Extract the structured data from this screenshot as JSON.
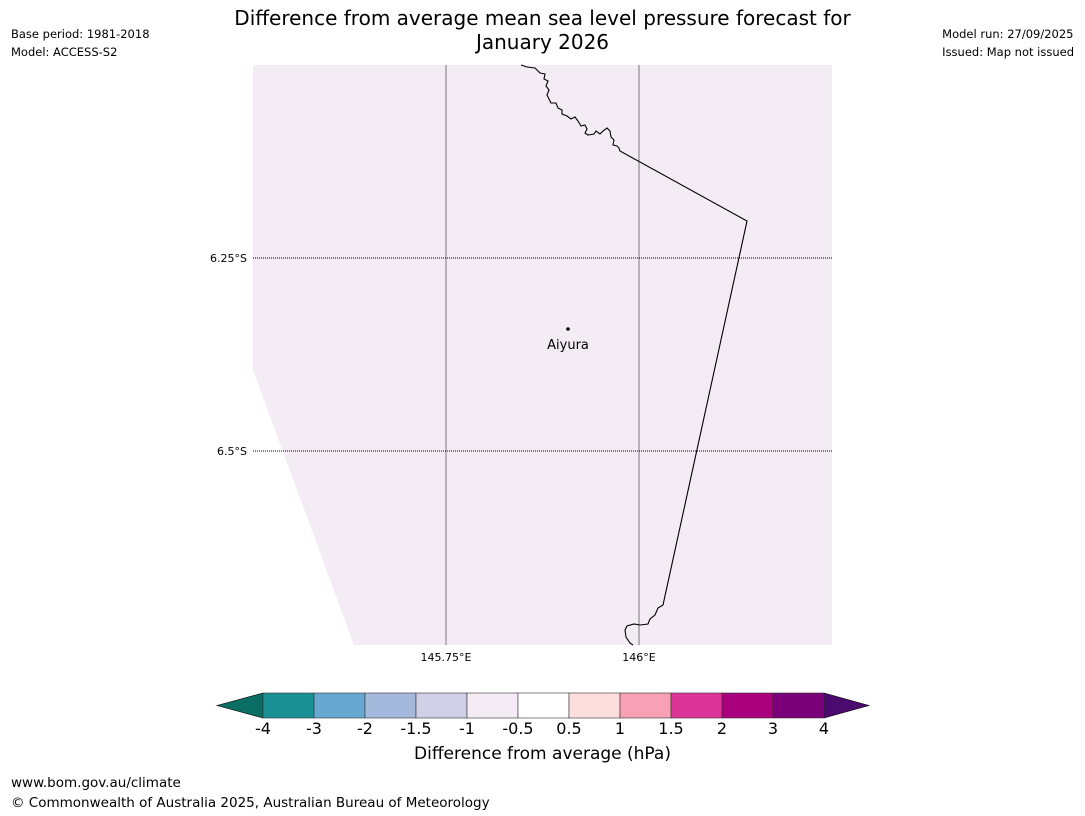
{
  "title_line1": "Difference from average mean sea level pressure forecast for",
  "title_line2": "January 2026",
  "meta_left": {
    "base_period": "Base period: 1981-2018",
    "model": "Model: ACCESS-S2"
  },
  "meta_right": {
    "model_run": "Model run: 27/09/2025",
    "issued": "Issued: Map not issued"
  },
  "map": {
    "fill_color": "#f3ecf4",
    "lat_labels": [
      "6.25°S",
      "6.5°S"
    ],
    "lon_labels": [
      "145.75°E",
      "146°E"
    ],
    "place": {
      "name": "Aiyura"
    }
  },
  "colorbar": {
    "label": "Difference from average (hPa)",
    "ticks": [
      "-4",
      "-3",
      "-2",
      "-1.5",
      "-1",
      "-0.5",
      "0.5",
      "1",
      "1.5",
      "2",
      "3",
      "4"
    ],
    "under_color": "#0b6e64",
    "over_color": "#4a0a6e",
    "colors": [
      "#1a9195",
      "#67a8d0",
      "#a4b8dc",
      "#cfcfe6",
      "#f3ecf4",
      "#ffffff",
      "#fddede",
      "#f8a0b6",
      "#dc3396",
      "#ab007d",
      "#7a0079"
    ]
  },
  "footer": {
    "url": "www.bom.gov.au/climate",
    "copyright": "© Commonwealth of Australia 2025, Australian Bureau of Meteorology"
  }
}
